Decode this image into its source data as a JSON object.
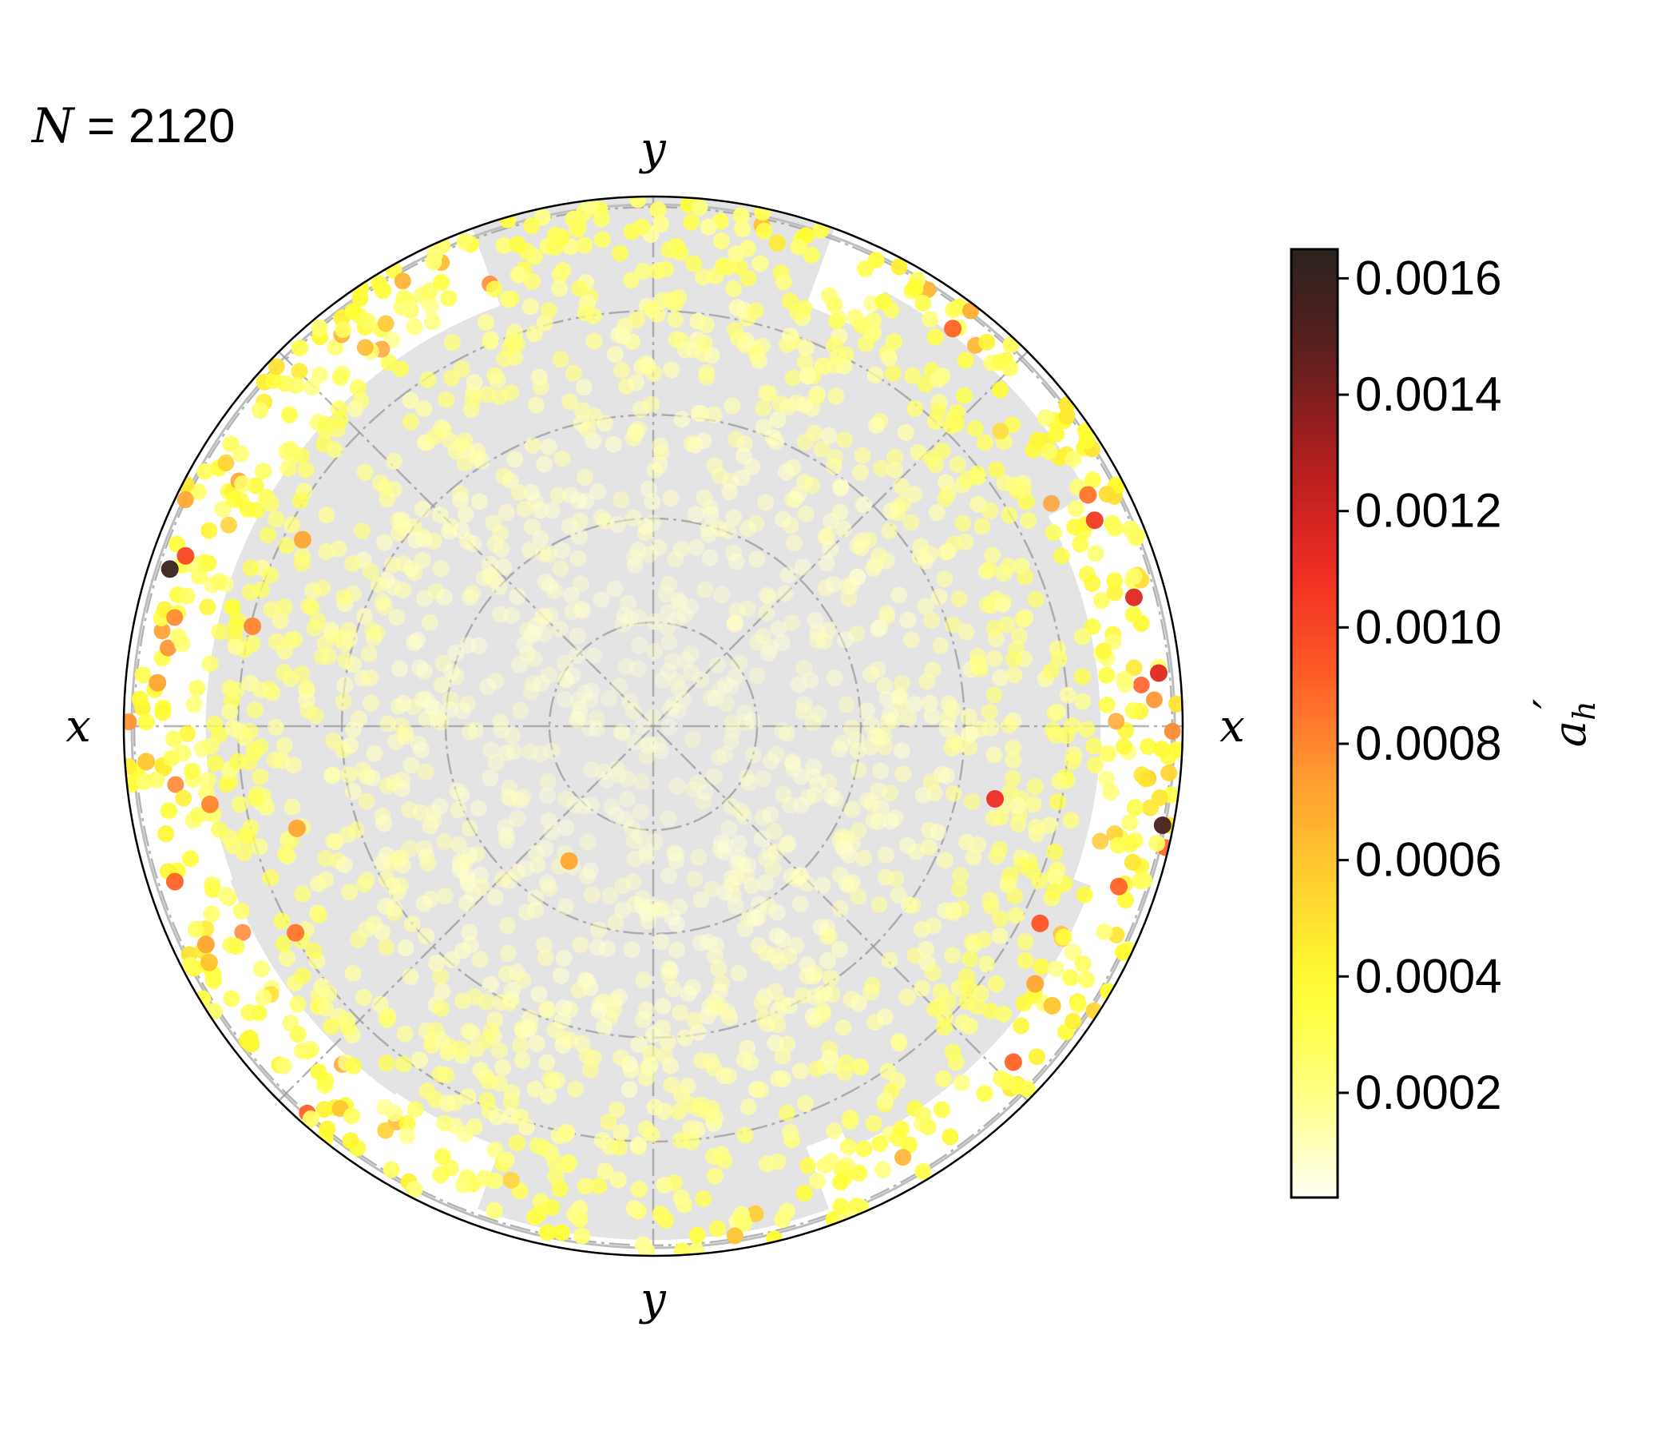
{
  "chart_data": {
    "type": "scatter",
    "projection": "polar",
    "annotation": {
      "symbol": "N",
      "equals": " = ",
      "count": "2120"
    },
    "axis_labels": {
      "top": "y",
      "bottom": "y",
      "left": "x",
      "right": "x"
    },
    "radial_grid_rings": 5,
    "angular_grid_lines_deg": [
      0,
      45,
      90,
      135
    ],
    "grid": true,
    "colorbar": {
      "label_base": "a",
      "label_prime": "′",
      "label_sub": "h",
      "min": 2e-05,
      "max": 0.00165,
      "ticks": [
        "0.0002",
        "0.0004",
        "0.0006",
        "0.0008",
        "0.0010",
        "0.0012",
        "0.0014",
        "0.0016"
      ],
      "tick_values": [
        0.0002,
        0.0004,
        0.0006,
        0.0008,
        0.001,
        0.0012,
        0.0014,
        0.0016
      ],
      "colormap": [
        "#fffff5",
        "#ffff80",
        "#ffff30",
        "#ffd030",
        "#ff9a30",
        "#ff5a26",
        "#ee2a22",
        "#b01e1e",
        "#5e1e1e",
        "#2a2420"
      ]
    },
    "shaded_region_color": "#e4e4e4",
    "highlighted_points": [
      {
        "r": 0.96,
        "theta_deg": 162,
        "value": 0.0016
      },
      {
        "r": 0.98,
        "theta_deg": 349,
        "value": 0.00155
      },
      {
        "r": 0.96,
        "theta_deg": 6,
        "value": 0.00115
      },
      {
        "r": 0.94,
        "theta_deg": 15,
        "value": 0.00115
      },
      {
        "r": 0.66,
        "theta_deg": 348,
        "value": 0.0011
      },
      {
        "r": 0.92,
        "theta_deg": 25,
        "value": 0.00105
      },
      {
        "r": 0.94,
        "theta_deg": 160,
        "value": 0.001
      },
      {
        "r": 0.94,
        "theta_deg": 53,
        "value": 0.0009
      },
      {
        "r": 0.93,
        "theta_deg": 28,
        "value": 0.00085
      },
      {
        "r": 0.95,
        "theta_deg": 198,
        "value": 0.0009
      },
      {
        "r": 0.93,
        "theta_deg": 341,
        "value": 0.0009
      },
      {
        "r": 0.93,
        "theta_deg": 317,
        "value": 0.0009
      },
      {
        "r": 0.82,
        "theta_deg": 333,
        "value": 0.00095
      },
      {
        "r": 0.78,
        "theta_deg": 210,
        "value": 0.00085
      },
      {
        "r": 0.96,
        "theta_deg": 184,
        "value": 0.0006
      },
      {
        "r": 0.94,
        "theta_deg": 175,
        "value": 0.0007
      },
      {
        "r": 0.85,
        "theta_deg": 190,
        "value": 0.0008
      },
      {
        "r": 0.94,
        "theta_deg": 206,
        "value": 0.0007
      },
      {
        "r": 0.78,
        "theta_deg": 166,
        "value": 0.0008
      },
      {
        "r": 0.3,
        "theta_deg": 238,
        "value": 0.0007
      },
      {
        "r": 0.7,
        "theta_deg": 196,
        "value": 0.0007
      },
      {
        "r": 0.75,
        "theta_deg": 152,
        "value": 0.0007
      },
      {
        "r": 0.95,
        "theta_deg": 208,
        "value": 0.0006
      },
      {
        "r": 0.87,
        "theta_deg": 326,
        "value": 0.0007
      },
      {
        "r": 0.92,
        "theta_deg": 325,
        "value": 0.0006
      }
    ]
  }
}
